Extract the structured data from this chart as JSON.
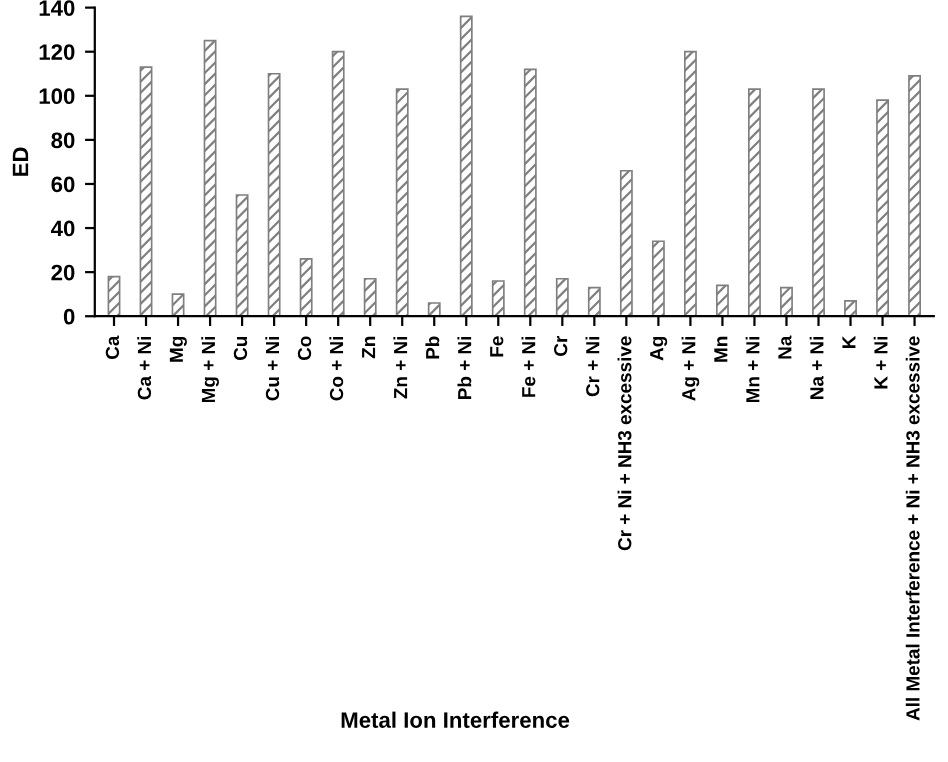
{
  "chart_data": {
    "type": "bar",
    "xlabel": "Metal Ion Interference",
    "ylabel": "ED",
    "categories": [
      "Ca",
      "Ca + Ni",
      "Mg",
      "Mg + Ni",
      "Cu",
      "Cu + Ni",
      "Co",
      "Co + Ni",
      "Zn",
      "Zn + Ni",
      "Pb",
      "Pb + Ni",
      "Fe",
      "Fe + Ni",
      "Cr",
      "Cr + Ni",
      "Cr + Ni + NH3 excessive",
      "Ag",
      "Ag + Ni",
      "Mn",
      "Mn + Ni",
      "Na",
      "Na + Ni",
      "K",
      "K + Ni",
      "All Metal Interference + Ni + NH3 excessive"
    ],
    "values": [
      18,
      113,
      10,
      125,
      55,
      110,
      26,
      120,
      17,
      103,
      6,
      136,
      16,
      112,
      17,
      13,
      66,
      34,
      120,
      14,
      103,
      13,
      103,
      7,
      98,
      109
    ],
    "color": "#7f7f7f",
    "ylim": [
      0,
      140
    ],
    "yticks": [
      0,
      20,
      40,
      60,
      80,
      100,
      120,
      140
    ],
    "grid": false,
    "legend": false
  }
}
